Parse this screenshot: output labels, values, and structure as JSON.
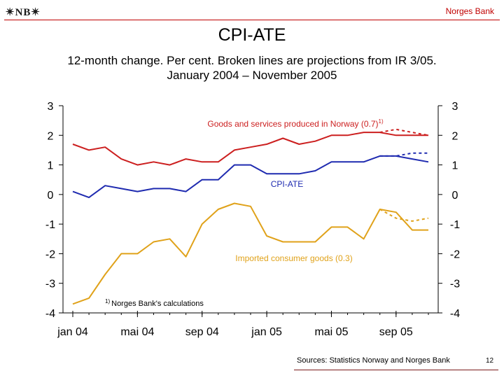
{
  "header": {
    "logo_text": "✴NB✴",
    "bank_name": "Norges Bank",
    "title": "CPI-ATE",
    "subtitle_line1": "12-month change. Per cent. Broken lines are projections from IR 3/05.",
    "subtitle_line2": "January 2004 – November 2005"
  },
  "footer": {
    "source": "Sources: Statistics Norway and Norges Bank",
    "page_number": "12"
  },
  "chart_data": {
    "type": "line",
    "ylim": [
      -4,
      3
    ],
    "yticks": [
      3,
      2,
      1,
      0,
      -1,
      -2,
      -3,
      -4
    ],
    "ytick_labels_left": [
      "3",
      "2",
      "1",
      "0",
      "-1",
      "-2",
      "-3",
      "-4"
    ],
    "ytick_labels_right": [
      "3",
      "2",
      "1",
      "0",
      "-1",
      "-2",
      "-3",
      "-4"
    ],
    "x_tick_labels": [
      "jan 04",
      "mai 04",
      "sep 04",
      "jan 05",
      "mai 05",
      "sep 05"
    ],
    "x_tick_months": [
      1,
      5,
      9,
      13,
      17,
      21
    ],
    "x_month_count": 23,
    "grid": false,
    "colors": {
      "norway": "#cc1f1f",
      "cpiate": "#1f2bb0",
      "imported": "#e0a21a",
      "axis": "#000000"
    },
    "series": [
      {
        "key": "norway",
        "label": "Goods and services produced in Norway (0.7)",
        "label_sup": "1)",
        "months": [
          1,
          2,
          3,
          4,
          5,
          6,
          7,
          8,
          9,
          10,
          11,
          12,
          13,
          14,
          15,
          16,
          17,
          18,
          19,
          20,
          21,
          22,
          23
        ],
        "values": [
          1.7,
          1.5,
          1.6,
          1.2,
          1.0,
          1.1,
          1.0,
          1.2,
          1.1,
          1.1,
          1.5,
          1.6,
          1.7,
          1.9,
          1.7,
          1.8,
          2.0,
          2.0,
          2.1,
          2.1,
          2.0,
          2.0,
          2.0
        ],
        "projection_months": [
          20,
          21,
          22,
          23
        ],
        "projection_values": [
          2.1,
          2.2,
          2.1,
          2.0
        ]
      },
      {
        "key": "cpiate",
        "label": "CPI-ATE",
        "months": [
          1,
          2,
          3,
          4,
          5,
          6,
          7,
          8,
          9,
          10,
          11,
          12,
          13,
          14,
          15,
          16,
          17,
          18,
          19,
          20,
          21,
          22,
          23
        ],
        "values": [
          0.1,
          -0.1,
          0.3,
          0.2,
          0.1,
          0.2,
          0.2,
          0.1,
          0.5,
          0.5,
          1.0,
          1.0,
          0.7,
          0.7,
          0.7,
          0.8,
          1.1,
          1.1,
          1.1,
          1.3,
          1.3,
          1.2,
          1.1
        ],
        "projection_months": [
          20,
          21,
          22,
          23
        ],
        "projection_values": [
          1.3,
          1.3,
          1.4,
          1.4
        ]
      },
      {
        "key": "imported",
        "label": "Imported consumer goods (0.3)",
        "months": [
          1,
          2,
          3,
          4,
          5,
          6,
          7,
          8,
          9,
          10,
          11,
          12,
          13,
          14,
          15,
          16,
          17,
          18,
          19,
          20,
          21,
          22,
          23
        ],
        "values": [
          -3.7,
          -3.5,
          -2.7,
          -2.0,
          -2.0,
          -1.6,
          -1.5,
          -2.1,
          -1.0,
          -0.5,
          -0.3,
          -0.4,
          -1.4,
          -1.6,
          -1.6,
          -1.6,
          -1.1,
          -1.1,
          -1.5,
          -0.5,
          -0.6,
          -1.2,
          -1.2
        ],
        "projection_months": [
          20,
          21,
          22,
          23
        ],
        "projection_values": [
          -0.5,
          -0.8,
          -0.9,
          -0.8
        ]
      }
    ],
    "annotations": [
      {
        "sup": "1)",
        "text": "Norges Bank's calculations"
      }
    ]
  }
}
